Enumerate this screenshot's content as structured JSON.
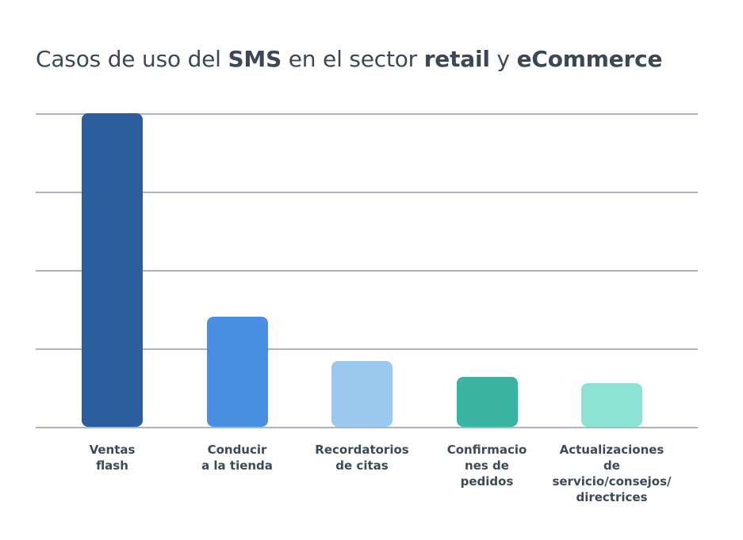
{
  "title": {
    "segments": [
      {
        "text": "Casos de uso del "
      },
      {
        "text": "SMS"
      },
      {
        "text": " en el sector "
      },
      {
        "text": "retail"
      },
      {
        "text": " y "
      },
      {
        "text": "eCommerce"
      }
    ],
    "full_text": "Casos de uso del SMS en el sector retail y eCommerce"
  },
  "chart_data": {
    "type": "bar",
    "title": "Casos de uso del SMS en el sector retail y eCommerce",
    "categories": [
      "Ventas flash",
      "Conducir a la tienda",
      "Recordatorios de citas",
      "Confirmaciones de pedidos",
      "Actualizaciones de servicio/consejos/directrices"
    ],
    "category_label_lines": [
      [
        "Ventas",
        "flash"
      ],
      [
        "Conducir",
        "a la tienda"
      ],
      [
        "Recordatorios",
        "de citas"
      ],
      [
        "Confirmacio",
        "nes de",
        "pedidos"
      ],
      [
        "Actualizaciones",
        "de servicio/consejos/",
        "directrices"
      ]
    ],
    "values": [
      100,
      35,
      21,
      16,
      14
    ],
    "bar_colors": [
      "#2b5d9f",
      "#4a90e2",
      "#9cc9f0",
      "#3ab3a1",
      "#8ce3d3"
    ],
    "xlabel": "",
    "ylabel": "",
    "ylim": [
      0,
      100
    ],
    "y_tick_labels_visible": false,
    "legend": false,
    "grid": {
      "count": 5,
      "interval": 25,
      "color": "#aeb4be",
      "orientation": "horizontal"
    }
  },
  "colors": {
    "title_text": "#3d4856",
    "label_text": "#3e4a59",
    "background": "#ffffff"
  }
}
